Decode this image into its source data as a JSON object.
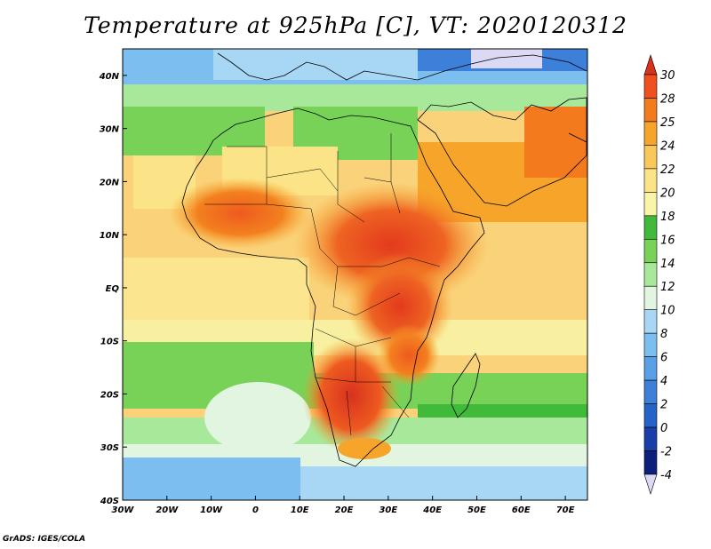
{
  "title": "Temperature at 925hPa [C], VT: 2020120312",
  "credit": "GrADS: IGES/COLA",
  "map": {
    "lon_range": [
      -30,
      75
    ],
    "lat_range": [
      -40,
      45
    ],
    "lon_ticks": [
      "30W",
      "20W",
      "10W",
      "0",
      "10E",
      "20E",
      "30E",
      "40E",
      "50E",
      "60E",
      "70E"
    ],
    "lat_ticks": [
      "40N",
      "30N",
      "20N",
      "10N",
      "EQ",
      "10S",
      "20S",
      "30S",
      "40S"
    ]
  },
  "colorbar": {
    "labels": [
      "30",
      "28",
      "25",
      "24",
      "22",
      "20",
      "18",
      "16",
      "14",
      "12",
      "10",
      "8",
      "6",
      "4",
      "2",
      "0",
      "-2",
      "-4"
    ],
    "colors": [
      "#d7321e",
      "#ee5020",
      "#f37b1d",
      "#f7a52a",
      "#fac85a",
      "#fbe487",
      "#f8f4a8",
      "#41b93a",
      "#78d257",
      "#a8e89a",
      "#e1f5e0",
      "#a7d7f5",
      "#7dbef0",
      "#5aa0e7",
      "#3c80d9",
      "#2563c8",
      "#1a3ea8",
      "#0c1f7a",
      "#dcd9f4"
    ]
  }
}
